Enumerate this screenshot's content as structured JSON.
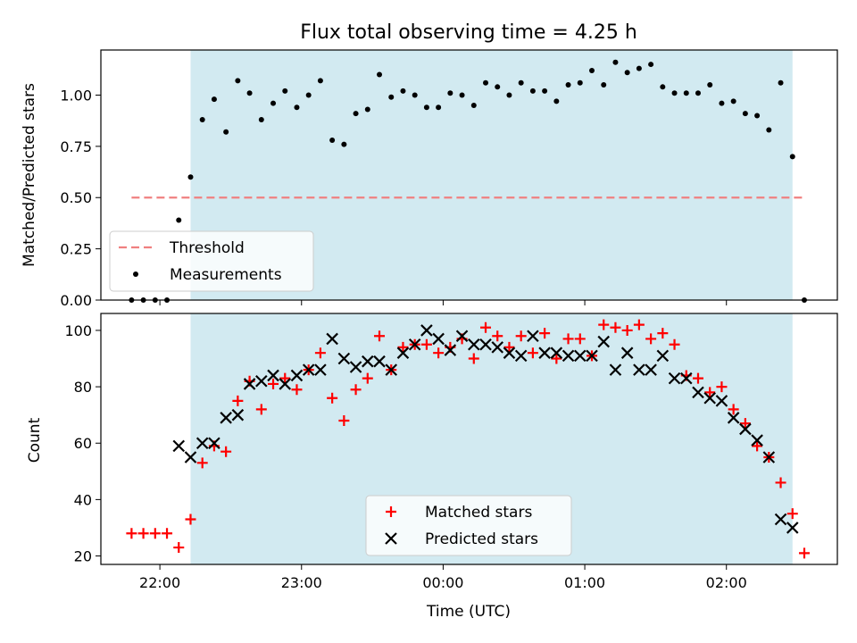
{
  "chart_data": [
    {
      "type": "scatter",
      "title": "Flux total observing time = 4.25 h",
      "xlabel": "",
      "ylabel": "Matched/Predicted stars",
      "xlim": [
        "21:35",
        "02:47"
      ],
      "ylim": [
        0,
        1.22
      ],
      "yticks": [
        0.0,
        0.25,
        0.5,
        0.75,
        1.0
      ],
      "ytick_labels": [
        "0.00",
        "0.25",
        "0.50",
        "0.75",
        "1.00"
      ],
      "shaded_region": {
        "start": "22:13",
        "end": "02:28",
        "color": "#add8e6"
      },
      "threshold": {
        "value": 0.5,
        "x_start": "21:48",
        "x_end": "02:33",
        "color": "#f08080"
      },
      "legend": {
        "location": "lower-left",
        "entries": [
          "Threshold",
          "Measurements"
        ]
      },
      "series": [
        {
          "name": "Measurements",
          "marker": "dot",
          "color": "#000000",
          "x": [
            "21:48",
            "21:53",
            "21:58",
            "22:03",
            "22:08",
            "22:13",
            "22:18",
            "22:23",
            "22:28",
            "22:33",
            "22:38",
            "22:43",
            "22:48",
            "22:53",
            "22:58",
            "23:03",
            "23:08",
            "23:13",
            "23:18",
            "23:23",
            "23:28",
            "23:33",
            "23:38",
            "23:43",
            "23:48",
            "23:53",
            "23:58",
            "00:03",
            "00:08",
            "00:13",
            "00:18",
            "00:23",
            "00:28",
            "00:33",
            "00:38",
            "00:43",
            "00:48",
            "00:53",
            "00:58",
            "01:03",
            "01:08",
            "01:13",
            "01:18",
            "01:23",
            "01:28",
            "01:33",
            "01:38",
            "01:43",
            "01:48",
            "01:53",
            "01:58",
            "02:03",
            "02:08",
            "02:13",
            "02:18",
            "02:23",
            "02:28",
            "02:33"
          ],
          "y": [
            0.0,
            0.0,
            0.0,
            0.0,
            0.39,
            0.6,
            0.88,
            0.98,
            0.82,
            1.07,
            1.01,
            0.88,
            0.96,
            1.02,
            0.94,
            1.0,
            1.07,
            0.78,
            0.76,
            0.91,
            0.93,
            1.1,
            0.99,
            1.02,
            1.0,
            0.94,
            0.94,
            1.01,
            1.0,
            0.95,
            1.06,
            1.04,
            1.0,
            1.06,
            1.02,
            1.02,
            0.97,
            1.05,
            1.06,
            1.12,
            1.05,
            1.16,
            1.11,
            1.13,
            1.15,
            1.04,
            1.01,
            1.01,
            1.01,
            1.05,
            0.96,
            0.97,
            0.91,
            0.9,
            0.83,
            1.06,
            0.7,
            0.0
          ]
        }
      ]
    },
    {
      "type": "scatter",
      "title": "",
      "xlabel": "Time (UTC)",
      "ylabel": "Count",
      "xlim": [
        "21:35",
        "02:47"
      ],
      "ylim": [
        17,
        106
      ],
      "yticks": [
        20,
        40,
        60,
        80,
        100
      ],
      "ytick_labels": [
        "20",
        "40",
        "60",
        "80",
        "100"
      ],
      "xticks": [
        "22:00",
        "23:00",
        "00:00",
        "01:00",
        "02:00"
      ],
      "xtick_labels": [
        "22:00",
        "23:00",
        "00:00",
        "01:00",
        "02:00"
      ],
      "shaded_region": {
        "start": "22:13",
        "end": "02:28",
        "color": "#add8e6"
      },
      "legend": {
        "location": "lower-center",
        "entries": [
          "Matched stars",
          "Predicted stars"
        ]
      },
      "series": [
        {
          "name": "Matched stars",
          "marker": "plus",
          "color": "#ff0000",
          "x": [
            "21:48",
            "21:53",
            "21:58",
            "22:03",
            "22:08",
            "22:13",
            "22:18",
            "22:23",
            "22:28",
            "22:33",
            "22:38",
            "22:43",
            "22:48",
            "22:53",
            "22:58",
            "23:03",
            "23:08",
            "23:13",
            "23:18",
            "23:23",
            "23:28",
            "23:33",
            "23:38",
            "23:43",
            "23:48",
            "23:53",
            "23:58",
            "00:03",
            "00:08",
            "00:13",
            "00:18",
            "00:23",
            "00:28",
            "00:33",
            "00:38",
            "00:43",
            "00:48",
            "00:53",
            "00:58",
            "01:03",
            "01:08",
            "01:13",
            "01:18",
            "01:23",
            "01:28",
            "01:33",
            "01:38",
            "01:43",
            "01:48",
            "01:53",
            "01:58",
            "02:03",
            "02:08",
            "02:13",
            "02:18",
            "02:23",
            "02:28",
            "02:33"
          ],
          "y": [
            28,
            28,
            28,
            28,
            23,
            33,
            53,
            59,
            57,
            75,
            82,
            72,
            81,
            83,
            79,
            86,
            92,
            76,
            68,
            79,
            83,
            98,
            86,
            94,
            95,
            95,
            92,
            94,
            97,
            90,
            101,
            98,
            94,
            98,
            92,
            99,
            90,
            97,
            97,
            91,
            102,
            101,
            100,
            102,
            97,
            99,
            95,
            84,
            83,
            78,
            80,
            72,
            67,
            59,
            55,
            46,
            35,
            21
          ]
        },
        {
          "name": "Predicted stars",
          "marker": "x",
          "color": "#000000",
          "x": [
            "22:08",
            "22:13",
            "22:18",
            "22:23",
            "22:28",
            "22:33",
            "22:38",
            "22:43",
            "22:48",
            "22:53",
            "22:58",
            "23:03",
            "23:08",
            "23:13",
            "23:18",
            "23:23",
            "23:28",
            "23:33",
            "23:38",
            "23:43",
            "23:48",
            "23:53",
            "23:58",
            "00:03",
            "00:08",
            "00:13",
            "00:18",
            "00:23",
            "00:28",
            "00:33",
            "00:38",
            "00:43",
            "00:48",
            "00:53",
            "00:58",
            "01:03",
            "01:08",
            "01:13",
            "01:18",
            "01:23",
            "01:28",
            "01:33",
            "01:38",
            "01:43",
            "01:48",
            "01:53",
            "01:58",
            "02:03",
            "02:08",
            "02:13",
            "02:18",
            "02:23",
            "02:28"
          ],
          "y": [
            59,
            55,
            60,
            60,
            69,
            70,
            81,
            82,
            84,
            81,
            84,
            86,
            86,
            97,
            90,
            87,
            89,
            89,
            86,
            92,
            95,
            100,
            97,
            93,
            98,
            95,
            95,
            94,
            92,
            91,
            98,
            92,
            92,
            91,
            91,
            91,
            96,
            86,
            92,
            86,
            86,
            91,
            83,
            83,
            78,
            76,
            75,
            69,
            65,
            61,
            55,
            33,
            30
          ]
        }
      ]
    }
  ]
}
